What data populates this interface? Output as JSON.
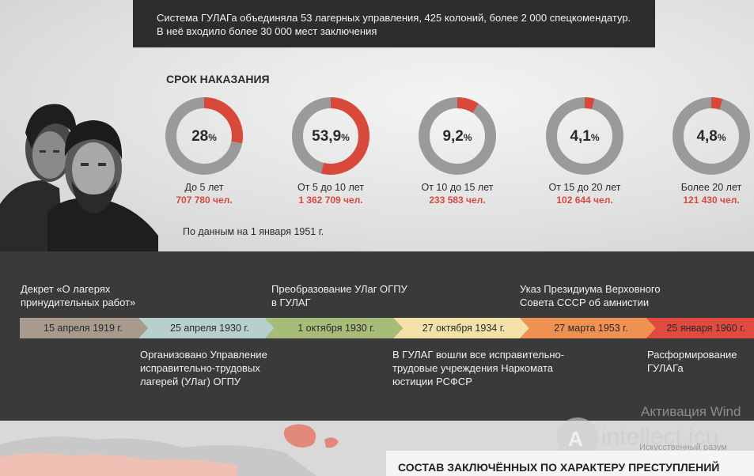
{
  "banner": {
    "line1": "Система ГУЛАГа объединяла 53 лагерных управления, 425 колоний, более 2 000 спецкомендатур.",
    "line2": "В неё входило более 30 000 мест заключения"
  },
  "section_title": "СРОК НАКАЗАНИЯ",
  "terms": [
    {
      "value": "28",
      "unit": "%",
      "fraction": 0.28,
      "label": "До 5 лет",
      "count": "707 780 чел."
    },
    {
      "value": "53,9",
      "unit": "%",
      "fraction": 0.539,
      "label": "От 5 до 10 лет",
      "count": "1 362 709 чел."
    },
    {
      "value": "9,2",
      "unit": "%",
      "fraction": 0.092,
      "label": "От 10 до 15 лет",
      "count": "233 583 чел."
    },
    {
      "value": "4,1",
      "unit": "%",
      "fraction": 0.041,
      "label": "От 15 до 20 лет",
      "count": "102 644 чел."
    },
    {
      "value": "4,8",
      "unit": "%",
      "fraction": 0.048,
      "label": "Более 20 лет",
      "count": "121 430 чел."
    }
  ],
  "note": "По данным на 1 января 1951 г.",
  "timeline": {
    "above": [
      {
        "l1": "Декрет «О лагерях",
        "l2": "принудительных работ»"
      },
      {
        "l1": "Преобразование УЛаг ОГПУ",
        "l2": "в ГУЛАГ"
      },
      {
        "l1": "Указ Президиума Верховного",
        "l2": "Совета СССР об амнистии"
      }
    ],
    "dates": [
      {
        "label": "15 апреля 1919 г.",
        "color": "#a89a8c"
      },
      {
        "label": "25 апреля 1930 г.",
        "color": "#b8d0cc"
      },
      {
        "label": "1 октября 1930 г.",
        "color": "#a8bc7a"
      },
      {
        "label": "27 октября 1934 г.",
        "color": "#f2e2a8"
      },
      {
        "label": "27 марта 1953 г.",
        "color": "#ef9150"
      },
      {
        "label": "25 января 1960 г.",
        "color": "#e14a3e"
      }
    ],
    "below": [
      {
        "l1": "Организовано Управление",
        "l2": "исправительно-трудовых",
        "l3": "лагерей (УЛаг) ОГПУ"
      },
      {
        "l1": "В ГУЛАГ вошли все исправительно-",
        "l2": "трудовые учреждения Наркомата",
        "l3": "юстиции РСФСР"
      },
      {
        "l1": "Расформирование",
        "l2": "ГУЛАГа"
      }
    ]
  },
  "bottom_title": "СОСТАВ ЗАКЛЮЧЁННЫХ ПО ХАРАКТЕРУ ПРЕСТУПЛЕНИЙ",
  "watermark": {
    "activate": "Активация Wind",
    "site": "intellect.icu",
    "sub": "Искусственный разум"
  },
  "colors": {
    "accent": "#d8493c",
    "ring": "#9a9a9a",
    "dark": "#3a3a3a"
  }
}
